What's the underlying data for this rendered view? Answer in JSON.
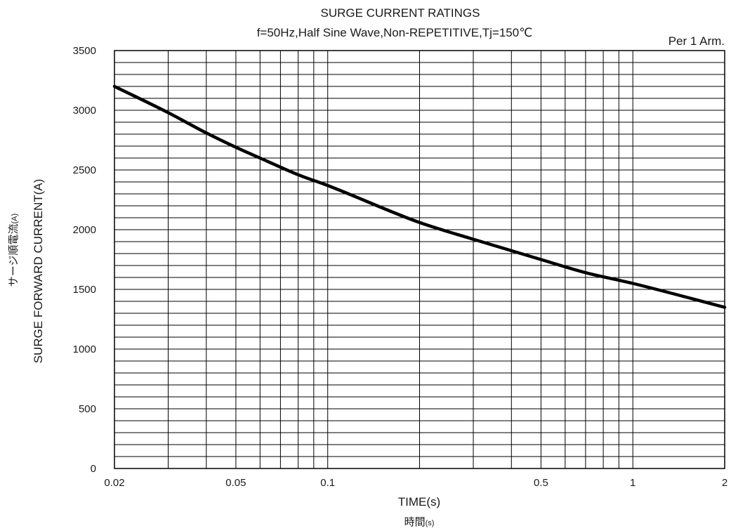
{
  "chart_data": {
    "type": "line",
    "title": "SURGE CURRENT RATINGS",
    "subtitle": "f=50Hz,Half Sine Wave,Non-REPETITIVE,Tj=150℃",
    "annotation": "Per 1 Arm.",
    "xlabel": "TIME(s)",
    "xlabel_sub": "時間",
    "xlabel_sub_unit": "(s)",
    "ylabel": "SURGE FORWARD CURRENT(A)",
    "ylabel_sub": "サージ順電流",
    "ylabel_sub_unit": "(A)",
    "x_scale": "log",
    "xlim": [
      0.02,
      2
    ],
    "ylim": [
      0,
      3500
    ],
    "grid": true,
    "x_ticks": [
      0.02,
      0.05,
      0.1,
      0.5,
      1,
      2
    ],
    "x_tick_labels": [
      "0.02",
      "0.05",
      "0.1",
      "0.5",
      "1",
      "2"
    ],
    "x_minor_grid": [
      0.03,
      0.04,
      0.06,
      0.07,
      0.08,
      0.09,
      0.2,
      0.3,
      0.4,
      0.6,
      0.7,
      0.8,
      0.9
    ],
    "y_ticks": [
      0,
      500,
      1000,
      1500,
      2000,
      2500,
      3000,
      3500
    ],
    "y_tick_labels": [
      "0",
      "500",
      "1000",
      "1500",
      "2000",
      "2500",
      "3000",
      "3500"
    ],
    "y_minor_step": 100,
    "series": [
      {
        "x": [
          0.02,
          0.03,
          0.04,
          0.05,
          0.06,
          0.08,
          0.1,
          0.2,
          0.3,
          0.5,
          0.7,
          1,
          2
        ],
        "y": [
          3200,
          2980,
          2810,
          2690,
          2600,
          2460,
          2370,
          2060,
          1920,
          1750,
          1640,
          1550,
          1350
        ]
      }
    ],
    "colors": {
      "line": "#000000",
      "grid": "#000000"
    }
  }
}
